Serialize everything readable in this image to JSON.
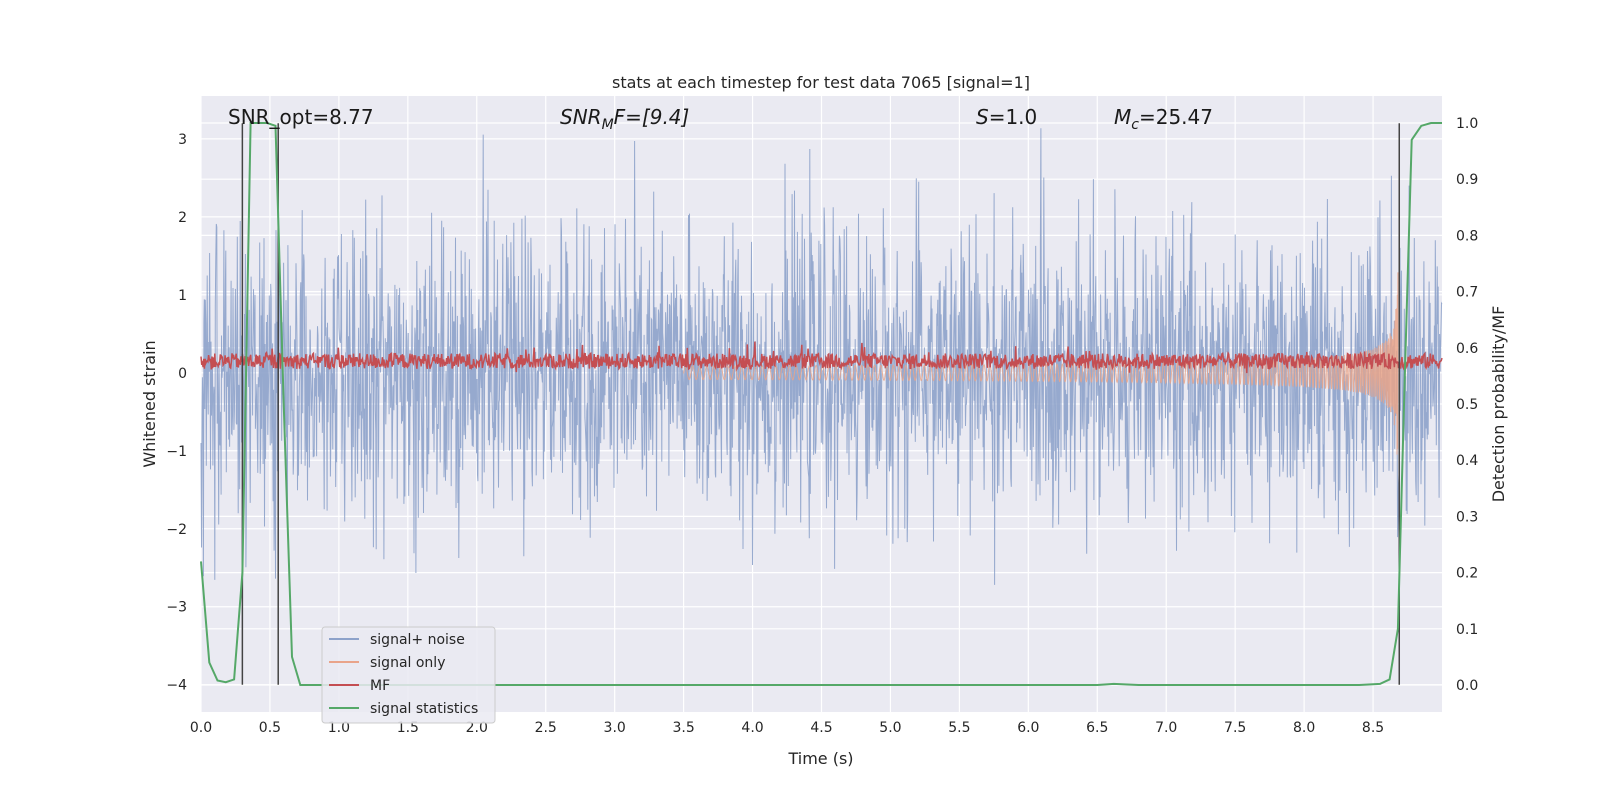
{
  "chart_data": {
    "type": "line",
    "title": "stats at each timestep for test data 7065 [signal=1]",
    "xlabel": "Time (s)",
    "ylabel": "Whitened strain",
    "y2label": "Detection probability/MF",
    "xlim": [
      0,
      9.0
    ],
    "ylim": [
      -4.35,
      3.55
    ],
    "y2lim": [
      -0.048,
      1.048
    ],
    "xticks": [
      "0.0",
      "0.5",
      "1.0",
      "1.5",
      "2.0",
      "2.5",
      "3.0",
      "3.5",
      "4.0",
      "4.5",
      "5.0",
      "5.5",
      "6.0",
      "6.5",
      "7.0",
      "7.5",
      "8.0",
      "8.5"
    ],
    "yticks": [
      "3",
      "2",
      "1",
      "0",
      "−1",
      "−2",
      "−3",
      "−4"
    ],
    "y2ticks": [
      "1.0",
      "0.9",
      "0.8",
      "0.7",
      "0.6",
      "0.5",
      "0.4",
      "0.3",
      "0.2",
      "0.1",
      "0.0"
    ],
    "grid": true,
    "legend_position": "lower-left",
    "annotations": {
      "snr_opt": "SNR_opt=8.77",
      "snr_mf_base": "SNR",
      "snr_mf_sub": "M",
      "snr_mf_rest": "F=[9.4]",
      "s_base": "S",
      "s_rest": "=1.0",
      "mc_base": "M",
      "mc_sub": "c",
      "mc_rest": "=25.47"
    },
    "series": [
      {
        "name": "signal+ noise",
        "color": "#8da2ca",
        "axis": "left",
        "kind": "noise",
        "amplitude_std": 0.9
      },
      {
        "name": "signal only",
        "color": "#e9a48a",
        "axis": "left",
        "kind": "chirp",
        "peak_time": 8.68,
        "peak_amplitude": 1.5
      },
      {
        "name": "MF",
        "color": "#c44e52",
        "axis": "left",
        "kind": "mf_band",
        "center": 0.15,
        "spread": 0.2
      },
      {
        "name": "signal statistics",
        "color": "#55a868",
        "axis": "right",
        "kind": "line",
        "x": [
          0.0,
          0.06,
          0.12,
          0.18,
          0.24,
          0.3,
          0.36,
          0.42,
          0.48,
          0.54,
          0.6,
          0.66,
          0.72,
          0.8,
          1.0,
          2.0,
          3.0,
          4.0,
          5.0,
          6.0,
          6.5,
          6.62,
          6.8,
          7.0,
          8.0,
          8.4,
          8.55,
          8.62,
          8.68,
          8.73,
          8.78,
          8.85,
          8.92,
          9.0
        ],
        "y": [
          0.22,
          0.04,
          0.008,
          0.005,
          0.01,
          0.2,
          1.0,
          1.0,
          1.0,
          0.995,
          0.5,
          0.05,
          0.0,
          0.0,
          0.0,
          0.0,
          0.0,
          0.0,
          0.0,
          0.0,
          0.0,
          0.002,
          0.0,
          0.0,
          0.0,
          0.0,
          0.002,
          0.01,
          0.1,
          0.55,
          0.97,
          0.995,
          1.0,
          1.0
        ]
      }
    ],
    "vertical_markers": [
      {
        "x": 0.3,
        "y_bottom": -4.0,
        "y_top": 3.2
      },
      {
        "x": 0.56,
        "y_bottom": -4.0,
        "y_top": 3.2
      },
      {
        "x": 8.69,
        "y_bottom": -4.0,
        "y_top": 3.2
      }
    ]
  },
  "colors": {
    "axes_bg": "#eaeaf2",
    "grid": "#ffffff",
    "text": "#262626",
    "marker_line": "#444444"
  }
}
